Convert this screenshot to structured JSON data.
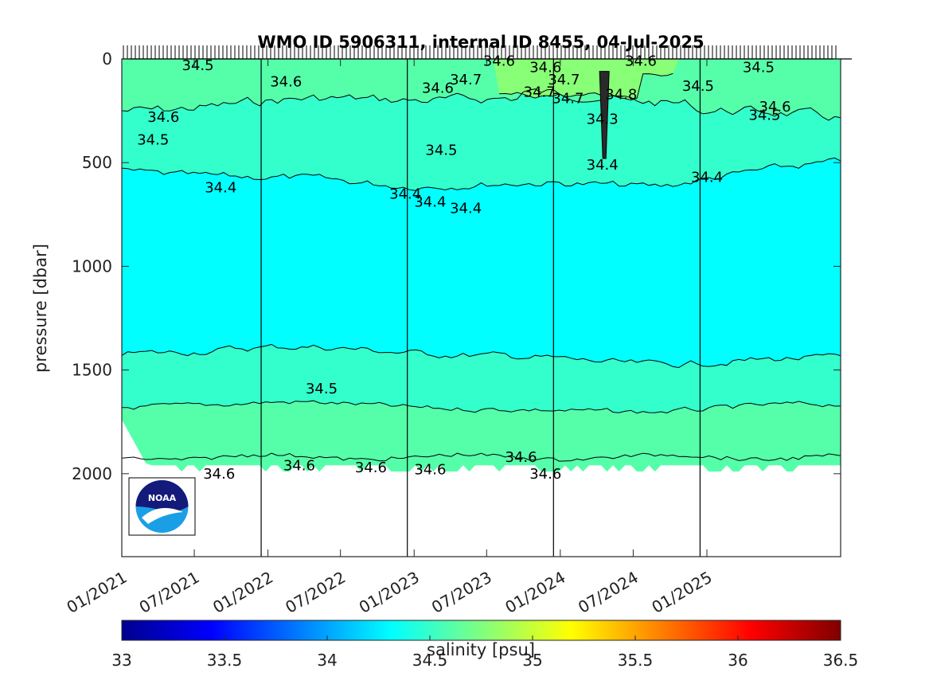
{
  "chart_data": {
    "type": "heatmap",
    "title": "WMO ID 5906311, internal ID 8455, 04-Jul-2025",
    "ylabel": "pressure [dbar]",
    "ylim": [
      2400,
      0
    ],
    "yticks": [
      0,
      500,
      1000,
      1500,
      2000
    ],
    "xlim": [
      "2021-01-01",
      "2025-12-01"
    ],
    "xticks": [
      "01/2021",
      "07/2021",
      "01/2022",
      "07/2022",
      "01/2023",
      "07/2023",
      "01/2024",
      "07/2024",
      "01/2025"
    ],
    "year_lines": [
      "2021-12-15",
      "2022-12-15",
      "2023-12-15",
      "2024-12-15"
    ],
    "colorbar": {
      "label": "salinity [psu]",
      "range": [
        33,
        36.5
      ],
      "ticks": [
        "33",
        "33.5",
        "34",
        "34.5",
        "35",
        "35.5",
        "36",
        "36.5"
      ],
      "colormap": "jet"
    },
    "contour_levels": [
      34.3,
      34.4,
      34.5,
      34.6,
      34.7,
      34.8
    ],
    "contour_labels": [
      {
        "text": "34.5",
        "x": "2021-07-10",
        "y": 30
      },
      {
        "text": "34.6",
        "x": "2022-02-15",
        "y": 110
      },
      {
        "text": "34.6",
        "x": "2021-04-15",
        "y": 280
      },
      {
        "text": "34.5",
        "x": "2021-03-20",
        "y": 390
      },
      {
        "text": "34.4",
        "x": "2021-09-05",
        "y": 620
      },
      {
        "text": "34.4",
        "x": "2022-12-10",
        "y": 650
      },
      {
        "text": "34.4",
        "x": "2023-02-10",
        "y": 690
      },
      {
        "text": "34.4",
        "x": "2023-05-10",
        "y": 720
      },
      {
        "text": "34.5",
        "x": "2023-03-10",
        "y": 440
      },
      {
        "text": "34.6",
        "x": "2023-08-01",
        "y": 10
      },
      {
        "text": "34.6",
        "x": "2023-03-01",
        "y": 140
      },
      {
        "text": "34.7",
        "x": "2023-05-10",
        "y": 100
      },
      {
        "text": "34.7",
        "x": "2023-11-10",
        "y": 160
      },
      {
        "text": "34.7",
        "x": "2024-01-10",
        "y": 100
      },
      {
        "text": "34.6",
        "x": "2023-11-25",
        "y": 40
      },
      {
        "text": "34.7",
        "x": "2024-01-20",
        "y": 190
      },
      {
        "text": "34.8",
        "x": "2024-06-01",
        "y": 170
      },
      {
        "text": "34.3",
        "x": "2024-04-15",
        "y": 290
      },
      {
        "text": "34.4",
        "x": "2024-04-15",
        "y": 510
      },
      {
        "text": "34.6",
        "x": "2024-07-20",
        "y": 10
      },
      {
        "text": "34.5",
        "x": "2024-12-10",
        "y": 130
      },
      {
        "text": "34.4",
        "x": "2025-01-01",
        "y": 570
      },
      {
        "text": "34.5",
        "x": "2025-05-10",
        "y": 40
      },
      {
        "text": "34.6",
        "x": "2025-06-20",
        "y": 230
      },
      {
        "text": "34.5",
        "x": "2025-05-25",
        "y": 270
      },
      {
        "text": "34.5",
        "x": "2022-05-15",
        "y": 1590
      },
      {
        "text": "34.6",
        "x": "2021-09-01",
        "y": 2000
      },
      {
        "text": "34.6",
        "x": "2022-03-20",
        "y": 1960
      },
      {
        "text": "34.6",
        "x": "2022-09-15",
        "y": 1970
      },
      {
        "text": "34.6",
        "x": "2023-02-10",
        "y": 1980
      },
      {
        "text": "34.6",
        "x": "2023-09-25",
        "y": 1920
      },
      {
        "text": "34.6",
        "x": "2023-11-25",
        "y": 2000
      }
    ],
    "logo": "noaa-logo"
  }
}
